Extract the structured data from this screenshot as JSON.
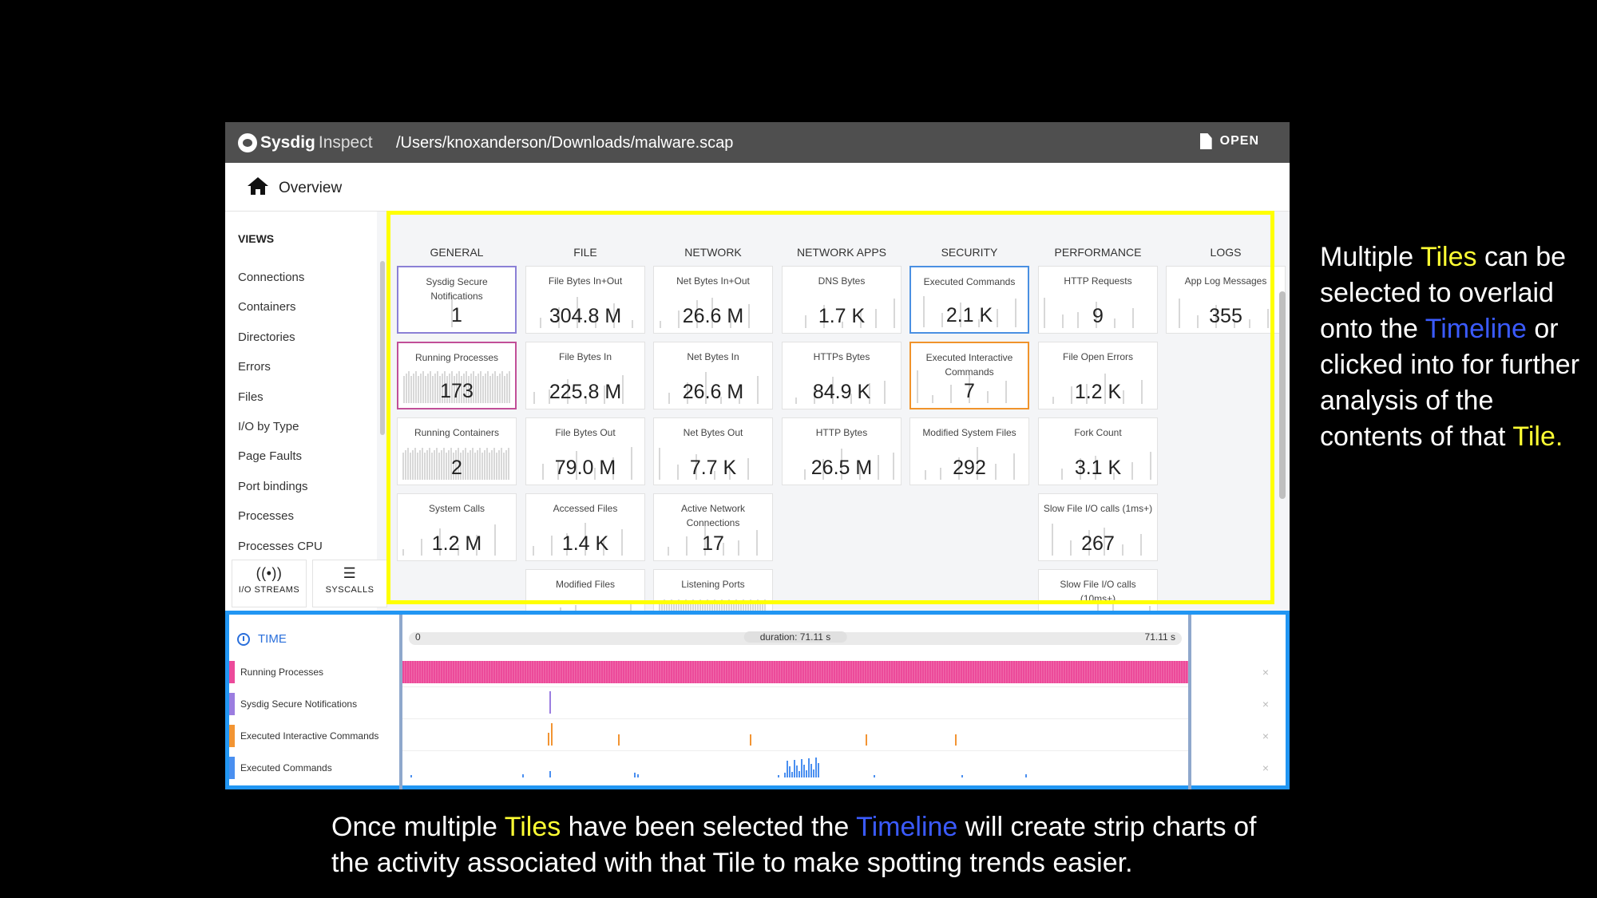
{
  "app": {
    "brand_bold": "Sysdig",
    "brand_light": "Inspect",
    "file_path": "/Users/knoxanderson/Downloads/malware.scap",
    "open_label": "OPEN",
    "breadcrumb": "Overview"
  },
  "sidebar": {
    "views_label": "VIEWS",
    "items": [
      "Connections",
      "Containers",
      "Directories",
      "Errors",
      "Files",
      "I/O by Type",
      "Page Faults",
      "Port bindings",
      "Processes",
      "Processes CPU"
    ],
    "io_streams_label": "I/O STREAMS",
    "syscalls_label": "SYSCALLS"
  },
  "columns": [
    "GENERAL",
    "FILE",
    "NETWORK",
    "NETWORK APPS",
    "SECURITY",
    "PERFORMANCE",
    "LOGS"
  ],
  "tiles": {
    "general": [
      {
        "label": "Sysdig Secure Notifications",
        "value": "1"
      },
      {
        "label": "Running Processes",
        "value": "173"
      },
      {
        "label": "Running Containers",
        "value": "2"
      },
      {
        "label": "System Calls",
        "value": "1.2 M"
      }
    ],
    "file": [
      {
        "label": "File Bytes In+Out",
        "value": "304.8 M"
      },
      {
        "label": "File Bytes In",
        "value": "225.8 M"
      },
      {
        "label": "File Bytes Out",
        "value": "79.0 M"
      },
      {
        "label": "Accessed Files",
        "value": "1.4 K"
      },
      {
        "label": "Modified Files",
        "value": ""
      }
    ],
    "network": [
      {
        "label": "Net Bytes In+Out",
        "value": "26.6 M"
      },
      {
        "label": "Net Bytes In",
        "value": "26.6 M"
      },
      {
        "label": "Net Bytes Out",
        "value": "7.7 K"
      },
      {
        "label": "Active Network Connections",
        "value": "17"
      },
      {
        "label": "Listening Ports",
        "value": ""
      }
    ],
    "netapps": [
      {
        "label": "DNS Bytes",
        "value": "1.7 K"
      },
      {
        "label": "HTTPs Bytes",
        "value": "84.9 K"
      },
      {
        "label": "HTTP Bytes",
        "value": "26.5 M"
      }
    ],
    "security": [
      {
        "label": "Executed Commands",
        "value": "2.1 K"
      },
      {
        "label": "Executed Interactive Commands",
        "value": "7"
      },
      {
        "label": "Modified System Files",
        "value": "292"
      }
    ],
    "performance": [
      {
        "label": "HTTP Requests",
        "value": "9"
      },
      {
        "label": "File Open Errors",
        "value": "1.2 K"
      },
      {
        "label": "Fork Count",
        "value": "3.1 K"
      },
      {
        "label": "Slow File I/O calls (1ms+)",
        "value": "267"
      },
      {
        "label": "Slow File I/O calls (10ms+)",
        "value": ""
      }
    ],
    "logs": [
      {
        "label": "App Log Messages",
        "value": "355"
      }
    ]
  },
  "timeline": {
    "time_label": "TIME",
    "start": "0",
    "duration": "duration: 71.11 s",
    "end": "71.11 s",
    "rows": [
      {
        "label": "Running Processes",
        "color": "#ec4a9a"
      },
      {
        "label": "Sysdig Secure Notifications",
        "color": "#9b7de0"
      },
      {
        "label": "Executed Interactive Commands",
        "color": "#f29433"
      },
      {
        "label": "Executed Commands",
        "color": "#4a8ff0"
      }
    ]
  },
  "captions": {
    "right": {
      "p1": "Multiple ",
      "tiles": "Tiles",
      "p2": " can be selected to overlaid onto the ",
      "timeline": "Timeline",
      "p3": " or clicked into for further analysis of the contents of that ",
      "tile": "Tile."
    },
    "bottom": {
      "p1": "Once multiple ",
      "tiles": "Tiles",
      "p2": " have been selected the ",
      "timeline": "Timeline",
      "p3": " will create strip charts of the activity associated with that Tile to make spotting trends easier."
    }
  }
}
